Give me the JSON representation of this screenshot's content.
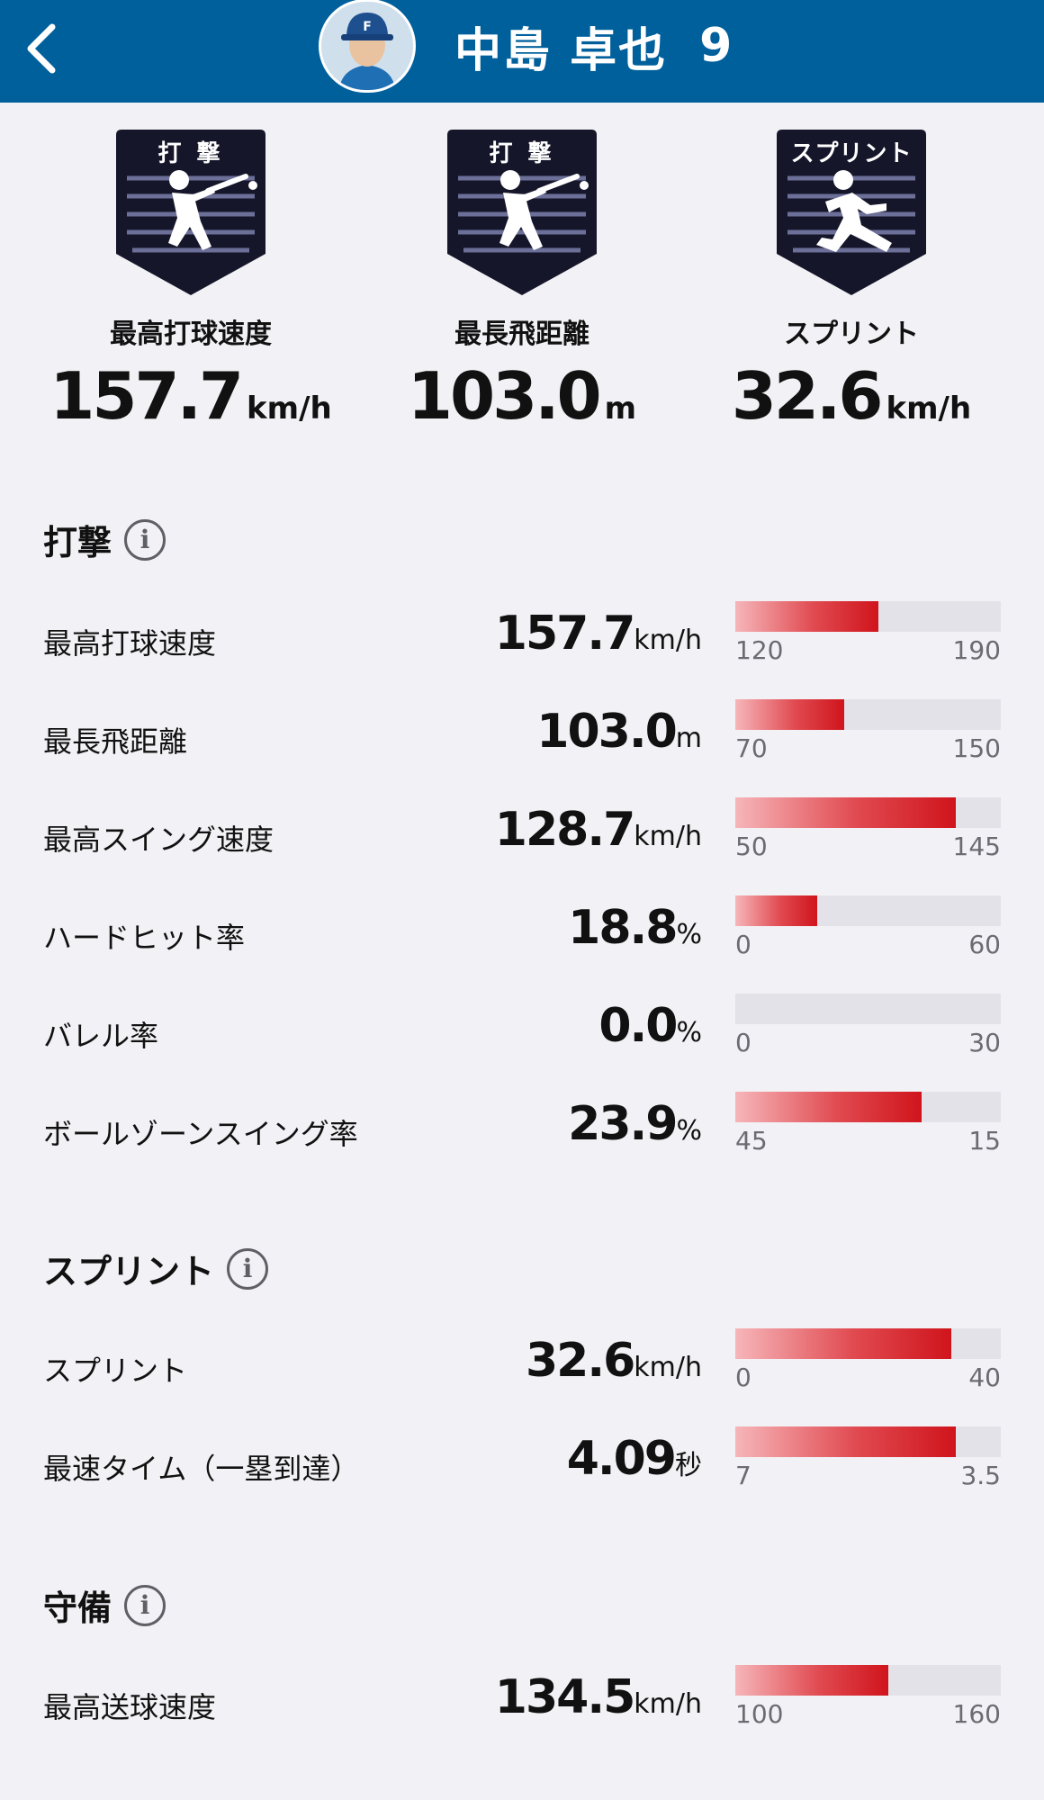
{
  "header": {
    "name": "中島 卓也",
    "number": "9"
  },
  "badges": [
    {
      "tag": "打 撃",
      "label": "最高打球速度",
      "value": "157.7",
      "unit": "km/h",
      "icon": "batter-icon"
    },
    {
      "tag": "打 撃",
      "label": "最長飛距離",
      "value": "103.0",
      "unit": "m",
      "icon": "batter-icon"
    },
    {
      "tag": "スプリント",
      "label": "スプリント",
      "value": "32.6",
      "unit": "km/h",
      "icon": "runner-icon"
    }
  ],
  "sections": {
    "batting": {
      "title": "打撃"
    },
    "sprint": {
      "title": "スプリント"
    },
    "defense": {
      "title": "守備"
    }
  },
  "rows": [
    {
      "label": "最高打球速度",
      "value": "157.7",
      "unit": "km/h",
      "min": "120",
      "max": "190",
      "fill": 0.54
    },
    {
      "label": "最長飛距離",
      "value": "103.0",
      "unit": "m",
      "min": "70",
      "max": "150",
      "fill": 0.41
    },
    {
      "label": "最高スイング速度",
      "value": "128.7",
      "unit": "km/h",
      "min": "50",
      "max": "145",
      "fill": 0.83
    },
    {
      "label": "ハードヒット率",
      "value": "18.8",
      "unit": "%",
      "min": "0",
      "max": "60",
      "fill": 0.31
    },
    {
      "label": "バレル率",
      "value": "0.0",
      "unit": "%",
      "min": "0",
      "max": "30",
      "fill": 0.0
    },
    {
      "label": "ボールゾーンスイング率",
      "value": "23.9",
      "unit": "%",
      "min": "45",
      "max": "15",
      "fill": 0.7
    },
    {
      "label": "スプリント",
      "value": "32.6",
      "unit": "km/h",
      "min": "0",
      "max": "40",
      "fill": 0.815
    },
    {
      "label": "最速タイム（一塁到達）",
      "value": "4.09",
      "unit": "秒",
      "min": "7",
      "max": "3.5",
      "fill": 0.83
    },
    {
      "label": "最高送球速度",
      "value": "134.5",
      "unit": "km/h",
      "min": "100",
      "max": "160",
      "fill": 0.575
    }
  ],
  "colors": {
    "header": "#00609c",
    "badge": "#15162a",
    "bar_fill": "#d0141c",
    "bar_track": "#e2e2e8",
    "background": "#f2f2f6"
  }
}
